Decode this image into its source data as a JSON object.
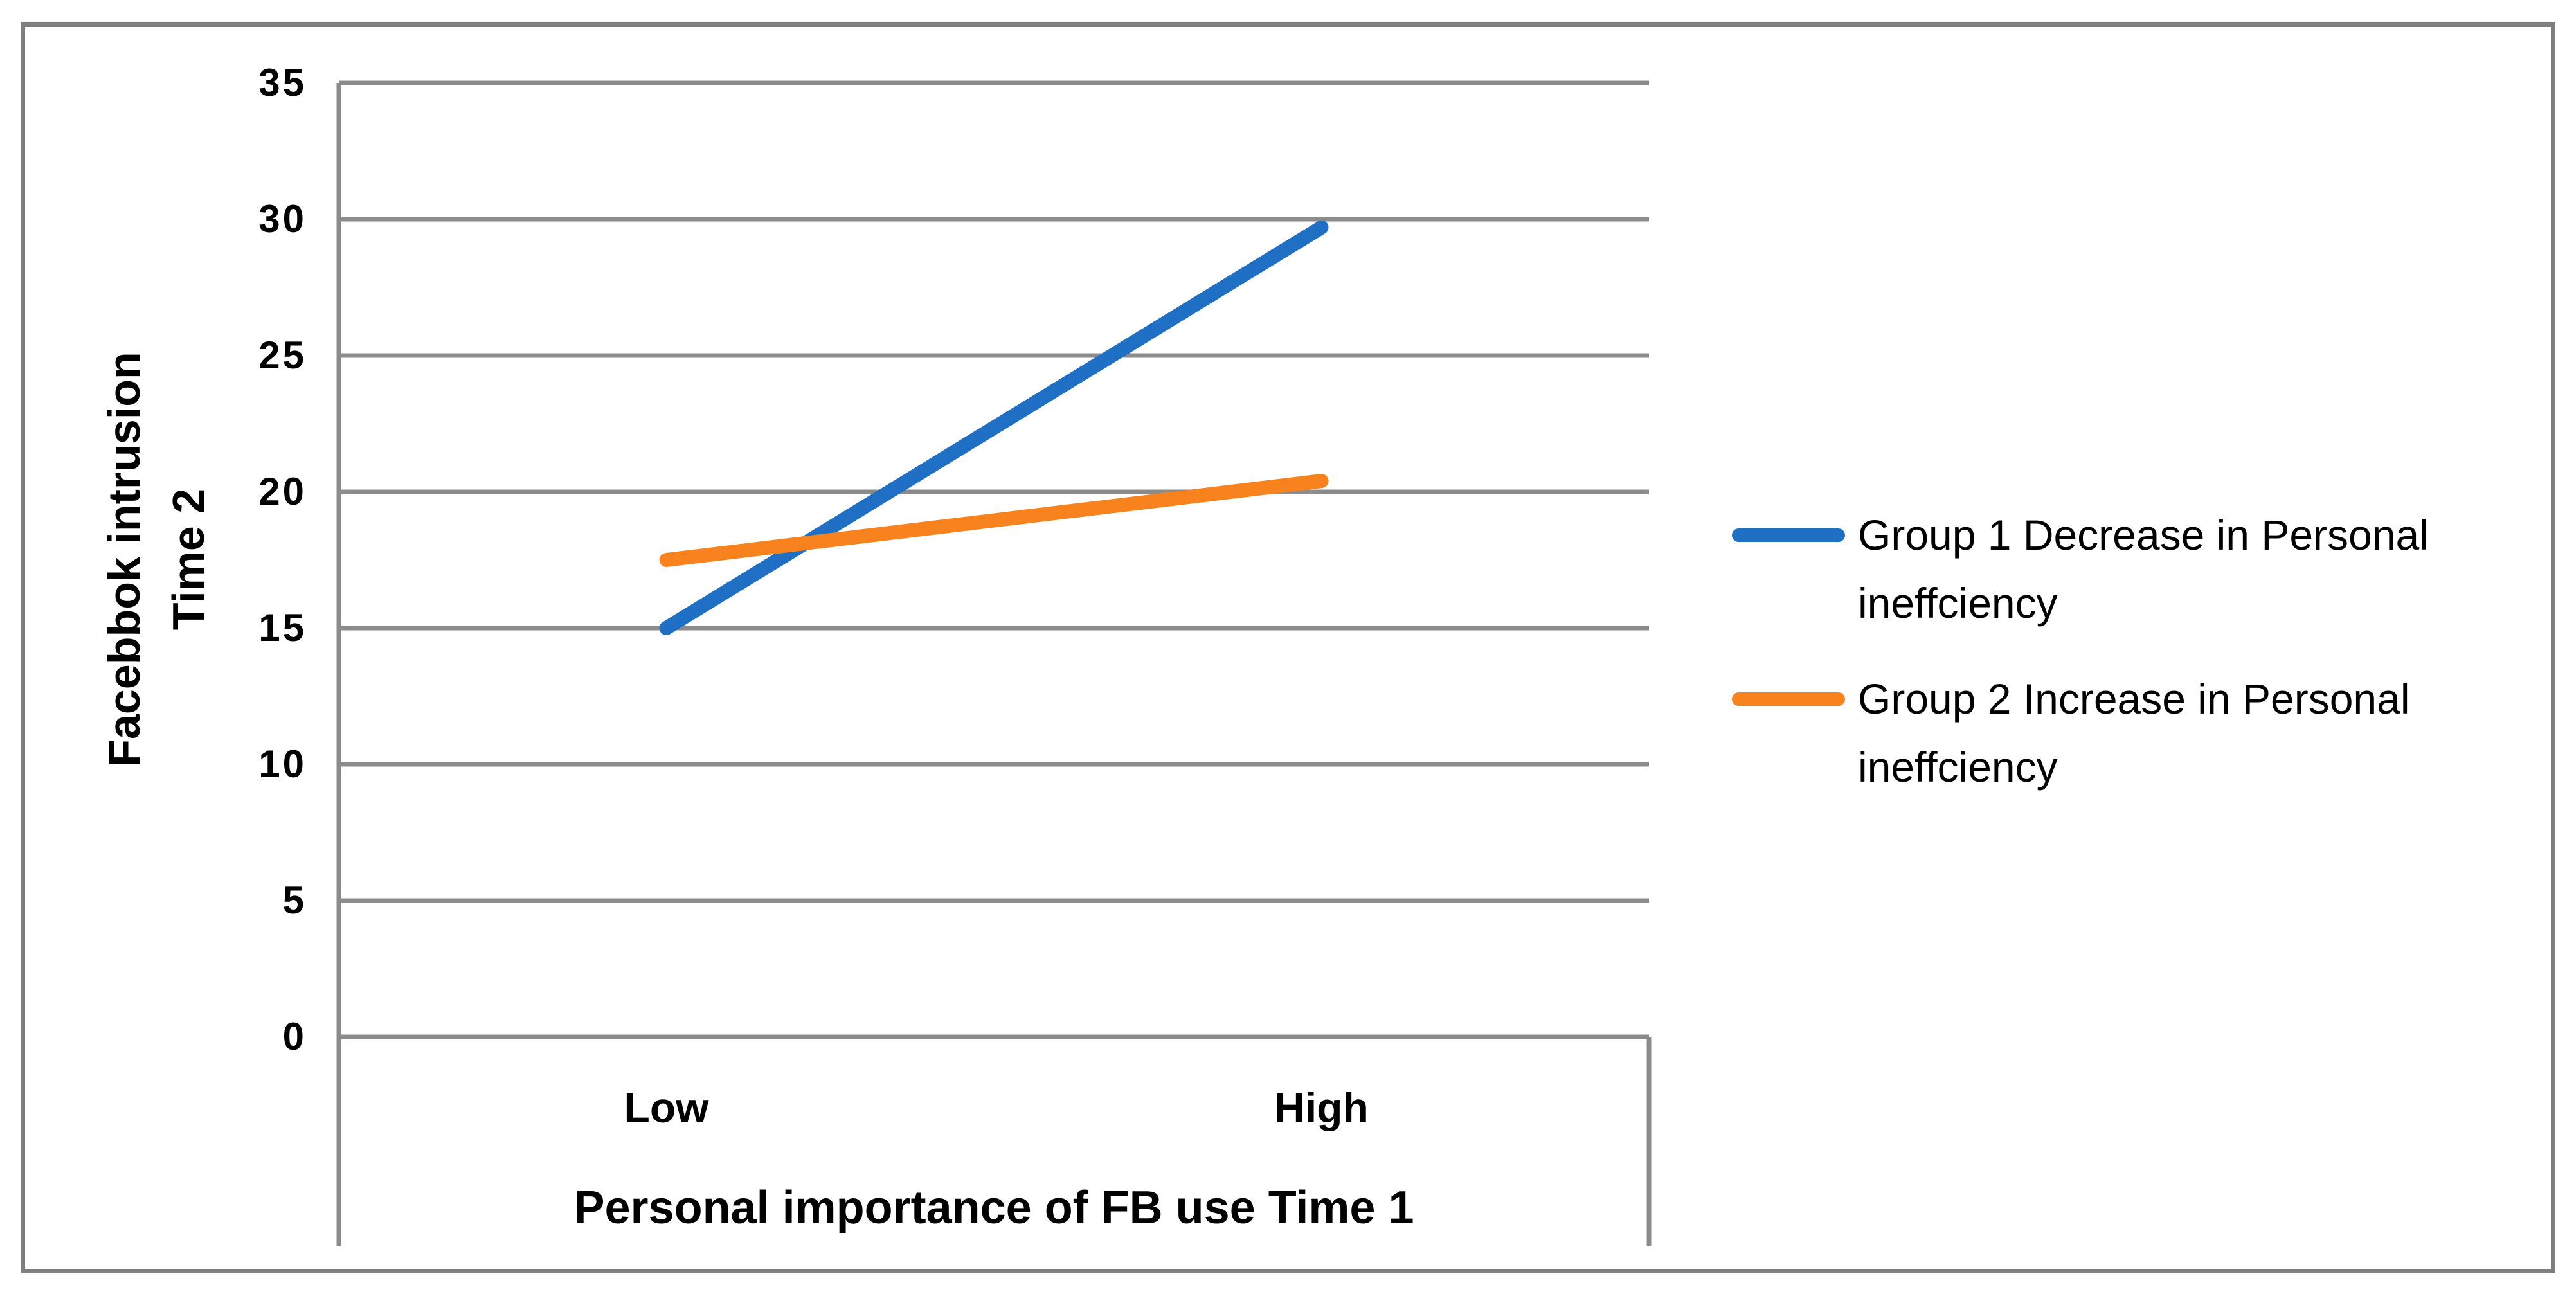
{
  "figure": {
    "background_color": "#ffffff",
    "outer_border_color": "#7f7f7f"
  },
  "chart_data": {
    "type": "line",
    "title": "",
    "categories": [
      "Low",
      "High"
    ],
    "series": [
      {
        "name": "Group 1 Decrease in Personal ineffciency",
        "values": [
          15,
          29.7
        ],
        "color": "#1F70C5"
      },
      {
        "name": "Group 2 Increase in Personal ineffciency",
        "values": [
          17.5,
          20.4
        ],
        "color": "#F8821E"
      }
    ],
    "xlabel": "Personal importance of FB use Time 1",
    "ylabel": "Facebbok intrusion Time 2",
    "ylabel_lines": [
      "Facebbok intrusion",
      "Time 2"
    ],
    "ylim": [
      0,
      35
    ],
    "yticks": [
      0,
      5,
      10,
      15,
      20,
      25,
      30,
      35
    ],
    "grid": "horizontal",
    "gridline_color": "#8c8c8c",
    "axis_line_color": "#8c8c8c",
    "legend_position": "right"
  }
}
